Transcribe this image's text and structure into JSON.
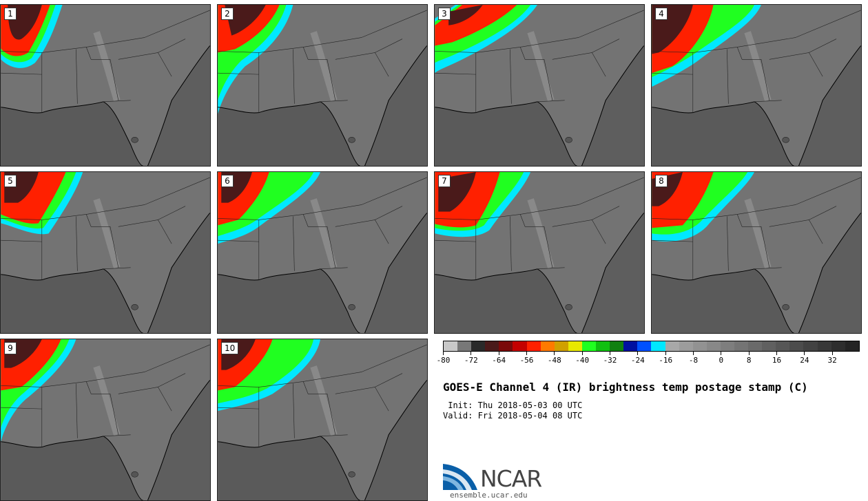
{
  "title": "GOES-E Channel 4 (IR) brightness temp postage stamp (C)",
  "init": {
    "label": " Init:",
    "value": "Thu 2018-05-03 00 UTC"
  },
  "valid": {
    "label": "Valid:",
    "value": "Fri 2018-05-04 08 UTC"
  },
  "members": [
    "1",
    "2",
    "3",
    "4",
    "5",
    "6",
    "7",
    "8",
    "9",
    "10"
  ],
  "colorbar": {
    "colors": [
      "#c8c8c8",
      "#787878",
      "#2a2a2a",
      "#4a1a1a",
      "#7a0a0a",
      "#c40000",
      "#ff2000",
      "#ff7a00",
      "#d0a000",
      "#e8e800",
      "#20ff20",
      "#10c010",
      "#108010",
      "#0010a0",
      "#0050ff",
      "#00e8ff",
      "#a8a8a8",
      "#9c9c9c",
      "#929292",
      "#888888",
      "#7e7e7e",
      "#747474",
      "#6a6a6a",
      "#606060",
      "#565656",
      "#4c4c4c",
      "#424242",
      "#383838",
      "#2e2e2e",
      "#242424"
    ],
    "tick_labels": [
      "-80",
      "-72",
      "-64",
      "-56",
      "-48",
      "-40",
      "-32",
      "-24",
      "-16",
      "-8",
      "0",
      "8",
      "16",
      "24",
      "32"
    ]
  },
  "logo": {
    "text": "NCAR",
    "url": "ensemble.ucar.edu",
    "color": "#0a5fa8"
  }
}
